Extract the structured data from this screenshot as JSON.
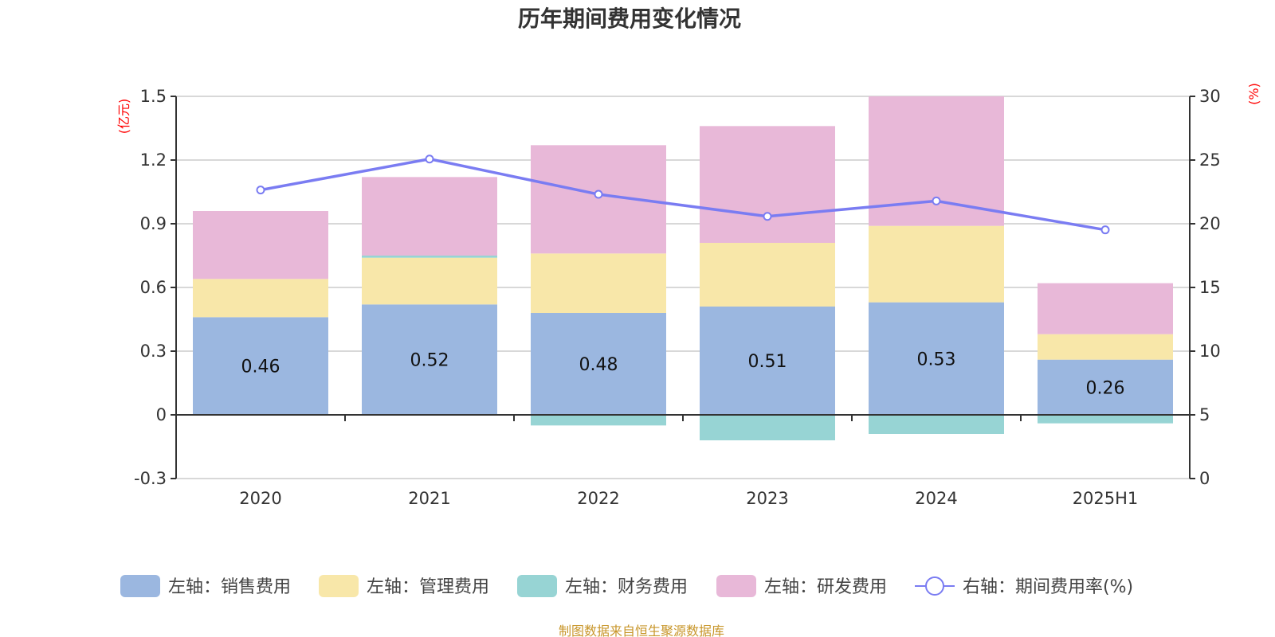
{
  "chart_data": {
    "type": "bar",
    "title": "历年期间费用变化情况",
    "categories": [
      "2020",
      "2021",
      "2022",
      "2023",
      "2024",
      "2025H1"
    ],
    "left_axis": {
      "label": "(亿元)",
      "range": [
        -0.3,
        1.5
      ],
      "ticks": [
        -0.3,
        0,
        0.3,
        0.6,
        0.9,
        1.2,
        1.5
      ],
      "tick_labels": [
        "-0.3",
        "0",
        "0.3",
        "0.6",
        "0.9",
        "1.2",
        "1.5"
      ]
    },
    "right_axis": {
      "label": "(%)",
      "range": [
        0,
        30
      ],
      "ticks": [
        0,
        5,
        10,
        15,
        20,
        25,
        30
      ],
      "tick_labels": [
        "0",
        "5",
        "10",
        "15",
        "20",
        "25",
        "30"
      ]
    },
    "grid": true,
    "stacked": true,
    "series": [
      {
        "name": "左轴：销售费用",
        "type": "bar",
        "axis": "left",
        "color": "#9bb7e0",
        "values": [
          0.46,
          0.52,
          0.48,
          0.51,
          0.53,
          0.26
        ],
        "labels": [
          "0.46",
          "0.52",
          "0.48",
          "0.51",
          "0.53",
          "0.26"
        ]
      },
      {
        "name": "左轴：管理费用",
        "type": "bar",
        "axis": "left",
        "color": "#f8e7a9",
        "values": [
          0.18,
          0.22,
          0.28,
          0.3,
          0.36,
          0.12
        ]
      },
      {
        "name": "左轴：财务费用",
        "type": "bar",
        "axis": "left",
        "color": "#97d4d4",
        "values": [
          0.0,
          0.01,
          -0.05,
          -0.12,
          -0.09,
          -0.04
        ]
      },
      {
        "name": "左轴：研发费用",
        "type": "bar",
        "axis": "left",
        "color": "#e8b8d8",
        "values": [
          0.32,
          0.37,
          0.51,
          0.55,
          0.61,
          0.24
        ]
      },
      {
        "name": "右轴：期间费用率(%)",
        "type": "line",
        "axis": "right",
        "color": "#7a7cf2",
        "values": [
          22.65,
          25.08,
          22.31,
          20.58,
          21.79,
          19.52
        ]
      }
    ],
    "legend": {
      "position": "bottom"
    }
  },
  "footer": "制图数据来自恒生聚源数据库"
}
